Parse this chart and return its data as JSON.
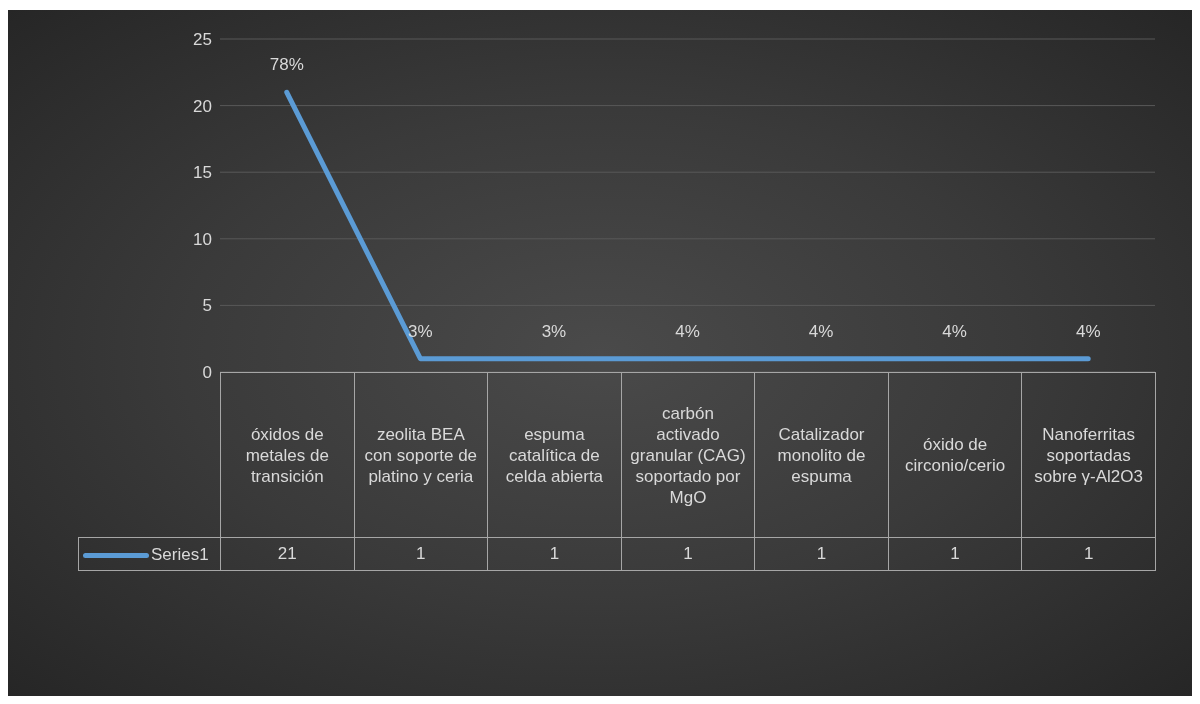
{
  "chart_data": {
    "type": "line",
    "categories": [
      "óxidos de metales de transición",
      "zeolita BEA con soporte de platino y ceria",
      "espuma catalítica de celda abierta",
      "carbón activado granular (CAG) soportado por MgO",
      "Catalizador monolito de espuma",
      "óxido de circonio/cerio",
      "Nanoferritas soportadas sobre γ-Al2O3"
    ],
    "series": [
      {
        "name": "Series1",
        "color": "#5b9bd5",
        "values": [
          21,
          1,
          1,
          1,
          1,
          1,
          1
        ]
      }
    ],
    "annotations": [
      {
        "text": "78%",
        "x": "óxidos de metales de transición",
        "y": 21
      },
      {
        "text": "3%",
        "x": "zeolita BEA con soporte de platino y ceria",
        "y": 1
      },
      {
        "text": "3%",
        "x": "espuma catalítica de celda abierta",
        "y": 1
      },
      {
        "text": "4%",
        "x": "carbón activado granular (CAG) soportado por MgO",
        "y": 1
      },
      {
        "text": "4%",
        "x": "Catalizador monolito de espuma",
        "y": 1
      },
      {
        "text": "4%",
        "x": "óxido de circonio/cerio",
        "y": 1
      },
      {
        "text": "4%",
        "x": "Nanoferritas soportadas sobre γ-Al2O3",
        "y": 1
      }
    ],
    "ylim": [
      0,
      25
    ],
    "yticks": [
      0,
      5,
      10,
      15,
      20,
      25
    ],
    "grid": "y",
    "legend": "bottom left",
    "data_labels": true,
    "marker": "none",
    "line_style": "solid"
  }
}
